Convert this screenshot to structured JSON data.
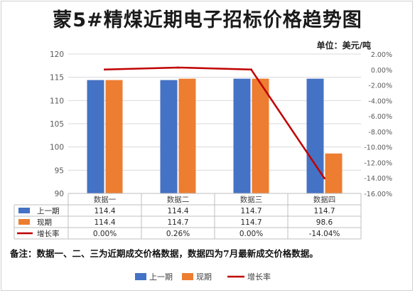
{
  "title": "蒙5#精煤近期电子招标价格趋势图",
  "unit_label": "单位：美元/吨",
  "note": "备注：数据一、二、三为近期成交价格数据，数据四为7月最新成交价格数据。",
  "colors": {
    "series1": "#4472c4",
    "series2": "#ed7d31",
    "line": "#c00000",
    "grid": "#d9d9d9"
  },
  "chart_data": {
    "type": "bar",
    "categories": [
      "数据一",
      "数据二",
      "数据三",
      "数据四"
    ],
    "series": [
      {
        "name": "上一期",
        "values": [
          114.4,
          114.4,
          114.7,
          114.7
        ],
        "color": "#4472c4"
      },
      {
        "name": "现期",
        "values": [
          114.4,
          114.7,
          114.7,
          98.6
        ],
        "color": "#ed7d31"
      }
    ],
    "line_series": {
      "name": "增长率",
      "values": [
        0.0,
        0.26,
        0.0,
        -14.04
      ],
      "labels": [
        "0.00%",
        "0.26%",
        "0.00%",
        "-14.04%"
      ],
      "color": "#c00000"
    },
    "ylim": [
      90,
      120
    ],
    "yticks": [
      "90",
      "95",
      "100",
      "105",
      "110",
      "115",
      "120"
    ],
    "y2lim": [
      -16,
      2
    ],
    "y2ticks": [
      "2.00%",
      "0.00%",
      "-2.00%",
      "-4.00%",
      "-6.00%",
      "-8.00%",
      "-10.00%",
      "-12.00%",
      "-14.00%",
      "-16.00%"
    ],
    "table_rows": [
      {
        "name": "上一期",
        "values": [
          "114.4",
          "114.4",
          "114.7",
          "114.7"
        ]
      },
      {
        "name": "现期",
        "values": [
          "114.4",
          "114.7",
          "114.7",
          "98.6"
        ]
      },
      {
        "name": "增长率",
        "values": [
          "0.00%",
          "0.26%",
          "0.00%",
          "-14.04%"
        ]
      }
    ],
    "legend": [
      "上一期",
      "现期",
      "增长率"
    ],
    "legend_position": "bottom",
    "grid": true
  }
}
